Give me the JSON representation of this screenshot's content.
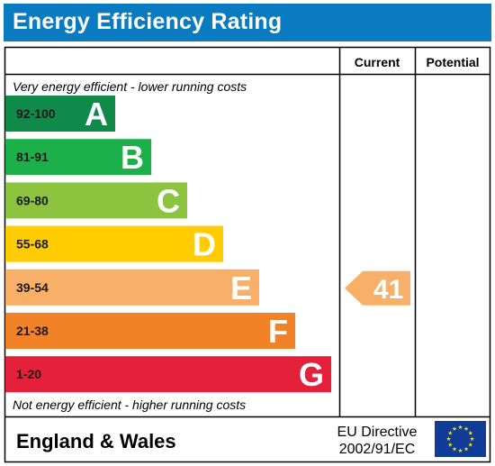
{
  "title": "Energy Efficiency Rating",
  "columns": {
    "current": "Current",
    "potential": "Potential"
  },
  "top_note": "Very energy efficient - lower running costs",
  "bottom_note": "Not energy efficient - higher running costs",
  "footer": {
    "region": "England & Wales",
    "directive_line1": "EU Directive",
    "directive_line2": "2002/91/EC",
    "flag": "eu-flag-icon"
  },
  "chart_data": {
    "type": "bar",
    "categories": [
      "A",
      "B",
      "C",
      "D",
      "E",
      "F",
      "G"
    ],
    "ranges": [
      "92-100",
      "81-91",
      "69-80",
      "55-68",
      "39-54",
      "21-38",
      "1-20"
    ],
    "colors": [
      "#0f8a4a",
      "#1bb04a",
      "#8cc43f",
      "#ffcc00",
      "#f8af67",
      "#f28227",
      "#e4203a"
    ],
    "current": {
      "value": 41,
      "band": "E",
      "color": "#f8af67"
    },
    "potential": null
  }
}
